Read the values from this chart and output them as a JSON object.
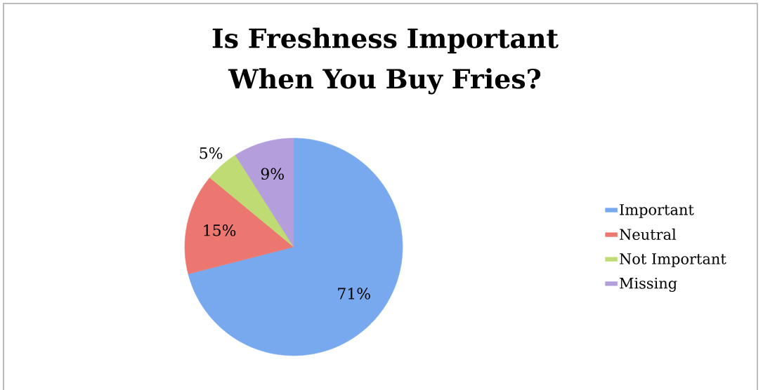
{
  "chart_data": {
    "type": "pie",
    "title": "Is Freshness Important When You Buy Fries?",
    "categories": [
      "Important",
      "Neutral",
      "Not Important",
      "Missing"
    ],
    "values": [
      71,
      15,
      5,
      9
    ],
    "value_labels": [
      "71%",
      "15%",
      "5%",
      "9%"
    ],
    "colors": [
      "#78a9ee",
      "#ec7770",
      "#bedb74",
      "#b49fdc"
    ],
    "legend": "right"
  }
}
